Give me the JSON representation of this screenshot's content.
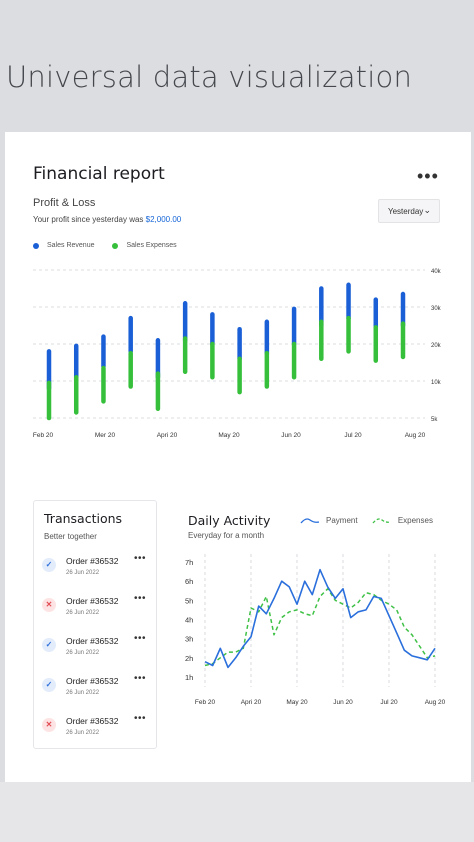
{
  "heading": "Universal data visualization",
  "report": {
    "title": "Financial report",
    "section": "Profit & Loss",
    "profit_text": "Your profit since yesterday was ",
    "profit_amount": "$2,000.00",
    "period": "Yesterday"
  },
  "colors": {
    "revenue": "#1a5fd6",
    "expenses": "#35bf3a",
    "payment": "#2a6fdc",
    "expenses_line": "#3fc146"
  },
  "icons": {
    "more": "more-dots-icon",
    "chevron": "chevron-down-icon",
    "check": "check-icon",
    "cross": "close-icon"
  },
  "chart_data": [
    {
      "type": "bar",
      "title": "Financial report",
      "series_names": [
        "Sales Revenue",
        "Sales Expenses"
      ],
      "legend": "top-left",
      "ylim": [
        0,
        40000
      ],
      "y_ticks": [
        "40k",
        "30k",
        "20k",
        "10k",
        "5k"
      ],
      "x_ticks": [
        "Feb 20",
        "Mer 20",
        "Apri 20",
        "May 20",
        "Jun 20",
        "Jul 20",
        "Aug 20"
      ],
      "grid": true,
      "bars": [
        {
          "rev": [
            8000,
            18000
          ],
          "exp": [
            0,
            9500
          ]
        },
        {
          "rev": [
            10000,
            19500
          ],
          "exp": [
            1500,
            11000
          ]
        },
        {
          "rev": [
            14000,
            22000
          ],
          "exp": [
            4500,
            13500
          ]
        },
        {
          "rev": [
            18000,
            27000
          ],
          "exp": [
            8500,
            17500
          ]
        },
        {
          "rev": [
            11000,
            21000
          ],
          "exp": [
            2500,
            12000
          ]
        },
        {
          "rev": [
            21000,
            31000
          ],
          "exp": [
            12500,
            21500
          ]
        },
        {
          "rev": [
            20000,
            28000
          ],
          "exp": [
            11000,
            20000
          ]
        },
        {
          "rev": [
            16000,
            24000
          ],
          "exp": [
            7000,
            16000
          ]
        },
        {
          "rev": [
            17500,
            26000
          ],
          "exp": [
            8500,
            17500
          ]
        },
        {
          "rev": [
            20000,
            29500
          ],
          "exp": [
            11000,
            20000
          ]
        },
        {
          "rev": [
            25000,
            35000
          ],
          "exp": [
            16000,
            26000
          ]
        },
        {
          "rev": [
            27000,
            36000
          ],
          "exp": [
            18000,
            27000
          ]
        },
        {
          "rev": [
            24000,
            32000
          ],
          "exp": [
            15500,
            24500
          ]
        },
        {
          "rev": [
            25000,
            33500
          ],
          "exp": [
            16500,
            25500
          ]
        }
      ]
    },
    {
      "type": "line",
      "title": "Daily Activity",
      "subtitle": "Everyday for a month",
      "series_names": [
        "Payment",
        "Expenses"
      ],
      "y_ticks": [
        "7h",
        "6h",
        "5h",
        "4h",
        "3h",
        "2h",
        "1h"
      ],
      "ylim": [
        1,
        7
      ],
      "x_ticks": [
        "Feb 20",
        "Apri 20",
        "May 20",
        "Jun 20",
        "Jul 20",
        "Aug 20"
      ],
      "x": [
        0,
        1,
        2,
        3,
        4,
        5,
        6,
        7,
        8,
        9,
        10,
        11,
        12,
        13,
        14,
        15,
        16,
        17,
        18,
        19,
        20,
        21,
        22,
        23,
        24,
        25,
        26,
        27,
        28,
        29,
        30
      ],
      "payment": [
        1.8,
        1.6,
        2.5,
        1.5,
        2.0,
        2.6,
        3.1,
        4.7,
        4.3,
        5.1,
        6.0,
        5.7,
        4.8,
        6.0,
        5.3,
        6.6,
        5.7,
        5.1,
        5.6,
        4.1,
        4.4,
        4.5,
        5.2,
        5.1,
        4.2,
        3.3,
        2.4,
        2.1,
        2.0,
        1.9,
        2.5
      ],
      "expenses": [
        1.6,
        1.7,
        2.0,
        2.3,
        2.3,
        2.5,
        4.6,
        4.4,
        5.2,
        3.2,
        4.1,
        4.4,
        4.5,
        4.3,
        4.2,
        5.2,
        5.6,
        5.0,
        4.8,
        4.6,
        4.9,
        5.4,
        5.3,
        5.0,
        4.8,
        4.5,
        3.6,
        3.2,
        2.6,
        2.0,
        2.1
      ]
    }
  ],
  "transactions": {
    "title": "Transactions",
    "subtitle": "Better together",
    "items": [
      {
        "status": "ok",
        "order": "Order #36532",
        "date": "26 Jun 2022"
      },
      {
        "status": "bad",
        "order": "Order #36532",
        "date": "26 Jun 2022"
      },
      {
        "status": "ok",
        "order": "Order #36532",
        "date": "26 Jun 2022"
      },
      {
        "status": "ok",
        "order": "Order #36532",
        "date": "26 Jun 2022"
      },
      {
        "status": "bad",
        "order": "Order #36532",
        "date": "26 Jun 2022"
      }
    ]
  }
}
